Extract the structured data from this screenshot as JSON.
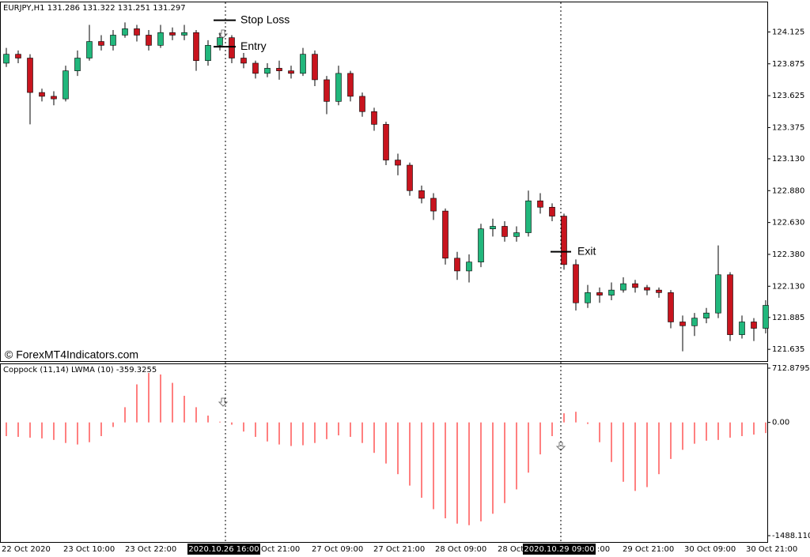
{
  "chart_data": [
    {
      "type": "candlestick",
      "title": "EURJPY,H1  131.286 131.322 131.251 131.297",
      "watermark": "© ForexMT4Indicators.com",
      "up_color": "#21b77c",
      "down_color": "#c8141e",
      "open": [
        123.88,
        123.95,
        123.92,
        123.65,
        123.62,
        123.6,
        123.82,
        123.92,
        124.05,
        124.02,
        124.1,
        124.15,
        124.1,
        124.02,
        124.12,
        124.1,
        124.12,
        123.9,
        124.02,
        124.08,
        123.92,
        123.88,
        123.8,
        123.84,
        123.82,
        123.8,
        123.95,
        123.75,
        123.58,
        123.8,
        123.62,
        123.5,
        123.4,
        123.12,
        123.08,
        122.88,
        122.82,
        122.72,
        122.35,
        122.25,
        122.32,
        122.58,
        122.6,
        122.52,
        122.55,
        122.8,
        122.75,
        122.68,
        122.3,
        122.0,
        122.08,
        122.06,
        122.1,
        122.15,
        122.12,
        122.1,
        122.08,
        121.85,
        121.82,
        121.88,
        121.92,
        122.22,
        121.75,
        121.85,
        121.8
      ],
      "high": [
        124.0,
        123.98,
        123.95,
        123.68,
        123.66,
        123.86,
        123.98,
        124.18,
        124.1,
        124.14,
        124.2,
        124.18,
        124.14,
        124.18,
        124.16,
        124.18,
        124.14,
        124.06,
        124.12,
        124.1,
        123.96,
        123.9,
        123.88,
        123.9,
        123.86,
        124.0,
        123.98,
        123.78,
        123.86,
        123.82,
        123.65,
        123.53,
        123.42,
        123.17,
        123.1,
        122.92,
        122.86,
        122.74,
        122.4,
        122.38,
        122.62,
        122.66,
        122.64,
        122.6,
        122.88,
        122.86,
        122.78,
        122.7,
        122.34,
        122.14,
        122.12,
        122.16,
        122.2,
        122.18,
        122.14,
        122.12,
        122.1,
        121.9,
        121.92,
        121.96,
        122.45,
        122.24,
        121.9,
        121.88,
        122.02
      ],
      "low": [
        123.85,
        123.88,
        123.4,
        123.58,
        123.55,
        123.58,
        123.78,
        123.9,
        123.98,
        123.98,
        124.08,
        124.05,
        123.98,
        124.0,
        124.06,
        124.06,
        123.82,
        123.86,
        123.98,
        123.88,
        123.84,
        123.76,
        123.77,
        123.75,
        123.76,
        123.78,
        123.7,
        123.48,
        123.55,
        123.58,
        123.46,
        123.35,
        123.08,
        123.0,
        122.84,
        122.78,
        122.65,
        122.3,
        122.18,
        122.16,
        122.28,
        122.52,
        122.48,
        122.48,
        122.52,
        122.7,
        122.64,
        122.26,
        121.94,
        121.96,
        122.0,
        122.02,
        122.08,
        122.08,
        122.06,
        122.04,
        121.8,
        121.62,
        121.74,
        121.84,
        121.88,
        121.7,
        121.72,
        121.7,
        121.76
      ],
      "close": [
        123.95,
        123.92,
        123.65,
        123.62,
        123.6,
        123.82,
        123.92,
        124.05,
        124.02,
        124.1,
        124.15,
        124.1,
        124.02,
        124.12,
        124.1,
        124.12,
        123.9,
        124.02,
        124.08,
        123.92,
        123.88,
        123.8,
        123.84,
        123.82,
        123.8,
        123.95,
        123.75,
        123.58,
        123.8,
        123.62,
        123.5,
        123.4,
        123.12,
        123.08,
        122.88,
        122.82,
        122.72,
        122.35,
        122.25,
        122.32,
        122.58,
        122.6,
        122.52,
        122.55,
        122.8,
        122.75,
        122.68,
        122.3,
        122.0,
        122.08,
        122.06,
        122.1,
        122.15,
        122.12,
        122.1,
        122.08,
        121.85,
        121.82,
        121.88,
        121.92,
        122.22,
        121.75,
        121.85,
        121.8,
        121.98
      ],
      "ylim": [
        121.543,
        124.357
      ],
      "yticks": [
        124.125,
        123.875,
        123.625,
        123.375,
        {
          "value": 123.13,
          "label": "123.130"
        },
        {
          "value": 122.88,
          "label": "122.880"
        },
        {
          "value": 122.63,
          "label": "122.630"
        },
        {
          "value": 122.38,
          "label": "122.380"
        },
        {
          "value": 122.13,
          "label": "122.130"
        },
        121.885,
        121.635
      ],
      "annotations": [
        {
          "text": "Stop Loss",
          "value": 124.217
        },
        {
          "text": "Entry",
          "value": 124.009
        },
        {
          "text": "Exit",
          "value": 122.401
        }
      ]
    },
    {
      "type": "histogram",
      "title": "Coppock (11,14) LWMA (10)  -359.3255",
      "color": "#ff2a2a",
      "values": [
        -180,
        -190,
        -200,
        -210,
        -230,
        -270,
        -290,
        -260,
        -180,
        -60,
        200,
        500,
        650,
        630,
        520,
        350,
        200,
        90,
        10,
        -30,
        -120,
        -190,
        -250,
        -290,
        -310,
        -300,
        -270,
        -220,
        -170,
        -190,
        -270,
        -400,
        -540,
        -680,
        -830,
        -990,
        -1140,
        -1260,
        -1330,
        -1350,
        -1300,
        -1200,
        -1060,
        -880,
        -660,
        -420,
        -180,
        120,
        140,
        -20,
        -260,
        -520,
        -780,
        -900,
        -850,
        -680,
        -480,
        -360,
        -280,
        -240,
        -230,
        -200,
        -180,
        -160,
        -140
      ],
      "ylim": [
        -1488.1104,
        712.8795
      ],
      "yticks": [
        712.8795,
        {
          "value": 0,
          "label": "0.00"
        },
        -1488.1104
      ]
    }
  ],
  "time_axis": {
    "labels": [
      "22 Oct 2020",
      "23 Oct 10:00",
      "23 Oct 22:00",
      "Oct 21:00",
      "27 Oct 09:00",
      "27 Oct 21:00",
      "28 Oct 09:00",
      "28 Oct",
      ":00",
      "29 Oct 21:00",
      "30 Oct 09:00",
      "30 Oct 21:00"
    ],
    "markers": [
      "2020.10.26 16:00",
      "2020.10.29 09:00"
    ]
  }
}
